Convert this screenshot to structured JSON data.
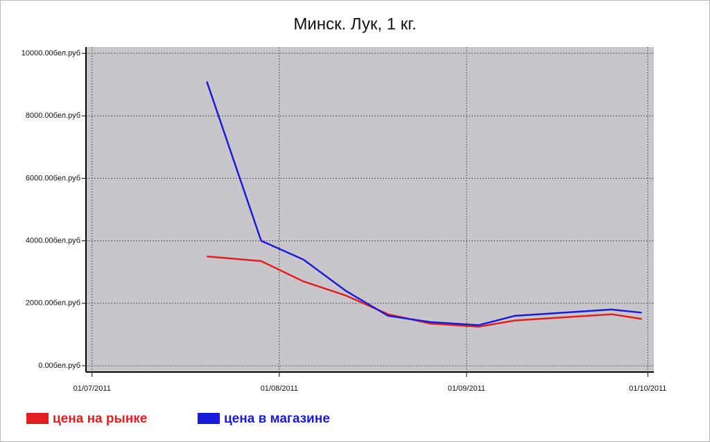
{
  "chart_data": {
    "type": "line",
    "title": "Минск. Лук, 1 кг.",
    "x": [
      "2011-07-20",
      "2011-07-29",
      "2011-08-05",
      "2011-08-12",
      "2011-08-19",
      "2011-08-26",
      "2011-09-03",
      "2011-09-09",
      "2011-09-25",
      "2011-09-30"
    ],
    "series": [
      {
        "name": "цена на рынке",
        "color": "#e02020",
        "values": [
          3500,
          3350,
          2700,
          2250,
          1650,
          1350,
          1250,
          1450,
          1650,
          1500
        ]
      },
      {
        "name": "цена в магазине",
        "color": "#1a1adb",
        "values": [
          9100,
          4000,
          3400,
          2400,
          1600,
          1400,
          1300,
          1600,
          1800,
          1700
        ]
      }
    ],
    "xlim": [
      "2011-06-30",
      "2011-10-02"
    ],
    "xticks": [
      {
        "value": "2011-07-01",
        "label": "01/07/2011"
      },
      {
        "value": "2011-08-01",
        "label": "01/08/2011"
      },
      {
        "value": "2011-09-01",
        "label": "01/09/2011"
      },
      {
        "value": "2011-10-01",
        "label": "01/10/2011"
      }
    ],
    "ylim": [
      -200,
      10200
    ],
    "yticks": [
      {
        "value": 0,
        "label": "0.00бел.руб"
      },
      {
        "value": 2000,
        "label": "2000.00бел.руб"
      },
      {
        "value": 4000,
        "label": "4000.00бел.руб"
      },
      {
        "value": 6000,
        "label": "6000.00бел.руб"
      },
      {
        "value": 8000,
        "label": "8000.00бел.руб"
      },
      {
        "value": 10000,
        "label": "10000.00бел.руб"
      }
    ],
    "grid": true,
    "legend": "bottom",
    "plot_background": "#c8c6cb"
  }
}
